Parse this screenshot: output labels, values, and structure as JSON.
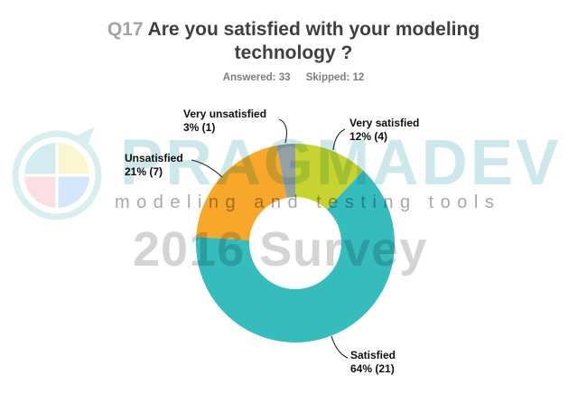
{
  "header": {
    "question_number": "Q17",
    "question_text": "Are you satisfied with your modeling technology ?",
    "answered": "Answered: 33",
    "skipped": "Skipped: 12"
  },
  "chart_data": {
    "type": "pie",
    "subtype": "donut",
    "title": "Q17 Are you satisfied with your modeling technology ?",
    "answered": 33,
    "skipped": 12,
    "direction": "clockwise",
    "start_angle_deg": 0,
    "inner_radius_ratio": 0.46,
    "legend_position": "none",
    "slices": [
      {
        "label": "Very satisfied",
        "percent": 12,
        "count": 4,
        "color": "#c7d330",
        "callout_line1": "Very satisfied",
        "callout_line2": "12% (4)"
      },
      {
        "label": "Satisfied",
        "percent": 64,
        "count": 21,
        "color": "#35bdbe",
        "callout_line1": "Satisfied",
        "callout_line2": "64% (21)"
      },
      {
        "label": "Unsatisfied",
        "percent": 21,
        "count": 7,
        "color": "#f7a82b",
        "callout_line1": "Unsatisfied",
        "callout_line2": "21% (7)"
      },
      {
        "label": "Very unsatisfied",
        "percent": 3,
        "count": 1,
        "color": "#95a0a2",
        "callout_line1": "Very unsatisfied",
        "callout_line2": "3% (1)"
      }
    ]
  },
  "watermark": {
    "brand": "PRAGMADEV",
    "tagline": "modeling and testing tools",
    "survey": "2016 Survey",
    "brand_color": "#cde8ed",
    "tagline_color": "#a8a8a8",
    "survey_color": "#d4d4d4",
    "logo_ring_color": "#d9eef1",
    "logo_quadrant_colors": [
      "#d3ecef",
      "#faf7d0",
      "#d2e7fa",
      "#fbdfe5"
    ]
  }
}
